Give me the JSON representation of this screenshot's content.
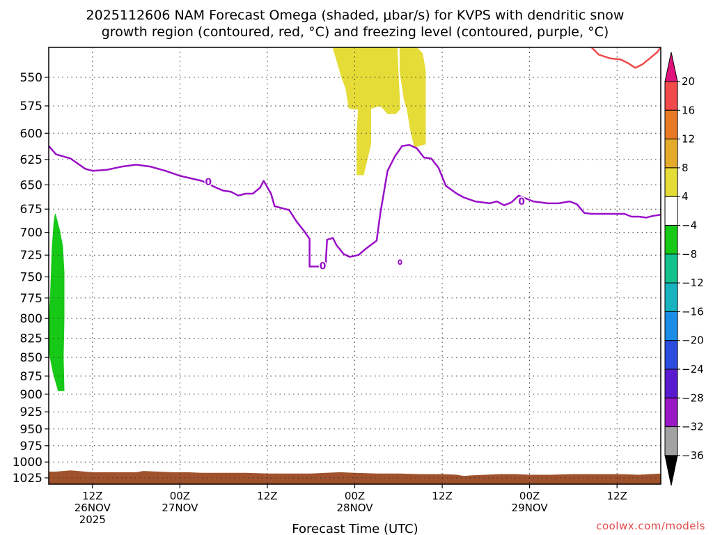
{
  "title_line1": "2025112606 NAM Forecast Omega (shaded, μbar/s) for KVPS with dendritic snow",
  "title_line2": "growth region (contoured, red, °C) and freezing level (contoured, purple, °C)",
  "credit": "coolwx.com/models",
  "chart_data": {
    "type": "time-height cross section",
    "title": "2025112606 NAM Forecast Omega (shaded, μbar/s) for KVPS with dendritic snow growth region (contoured, red, °C) and freezing level (contoured, purple, °C)",
    "xlabel": "Forecast Time (UTC)",
    "ylabel": "",
    "x_range_hours": [
      0,
      84
    ],
    "y_range_hpa": [
      525,
      1035
    ],
    "y_scale": "log-pressure (inverted)",
    "grid": true,
    "y_ticks": [
      550,
      575,
      600,
      625,
      650,
      675,
      700,
      725,
      750,
      775,
      800,
      825,
      850,
      875,
      900,
      925,
      950,
      975,
      1000,
      1025
    ],
    "x_ticks": [
      {
        "hour": 6,
        "line1": "12Z",
        "line2": "26NOV",
        "line3": "2025"
      },
      {
        "hour": 18,
        "line1": "00Z",
        "line2": "27NOV",
        "line3": ""
      },
      {
        "hour": 30,
        "line1": "12Z",
        "line2": "",
        "line3": ""
      },
      {
        "hour": 42,
        "line1": "00Z",
        "line2": "28NOV",
        "line3": ""
      },
      {
        "hour": 54,
        "line1": "12Z",
        "line2": "",
        "line3": ""
      },
      {
        "hour": 66,
        "line1": "00Z",
        "line2": "29NOV",
        "line3": ""
      },
      {
        "hour": 78,
        "line1": "12Z",
        "line2": "",
        "line3": ""
      }
    ],
    "colorbar": {
      "top_color": "#e0137a",
      "bottom_color": "#000000",
      "bins": [
        {
          "color": "#f04a4a"
        },
        {
          "color": "#e97a25"
        },
        {
          "color": "#e4ab2a"
        },
        {
          "color": "#e5dc38"
        },
        {
          "color": "#ffffff"
        },
        {
          "color": "#16c916"
        },
        {
          "color": "#13c18c"
        },
        {
          "color": "#17b4c0"
        },
        {
          "color": "#1c8de6"
        },
        {
          "color": "#2b4de0"
        },
        {
          "color": "#5a1bd0"
        },
        {
          "color": "#9a17c6"
        },
        {
          "color": "#a2a2a2"
        }
      ],
      "labels": [
        "20",
        "16",
        "12",
        "8",
        "4",
        "−4",
        "−8",
        "−12",
        "−16",
        "−20",
        "−24",
        "−28",
        "−32",
        "−36"
      ]
    },
    "freezing_level": {
      "color": "#9a10c8",
      "label": "0",
      "points": [
        [
          0,
          612
        ],
        [
          1,
          620
        ],
        [
          3,
          624
        ],
        [
          5,
          634
        ],
        [
          6,
          636
        ],
        [
          8,
          635
        ],
        [
          10,
          632
        ],
        [
          12,
          630
        ],
        [
          14,
          632
        ],
        [
          16,
          636
        ],
        [
          18,
          641
        ],
        [
          21,
          646
        ],
        [
          23,
          653
        ],
        [
          24,
          656
        ],
        [
          25,
          657
        ],
        [
          26,
          661
        ],
        [
          27,
          659
        ],
        [
          28,
          659
        ],
        [
          29,
          653
        ],
        [
          29.5,
          646
        ],
        [
          30.5,
          659
        ],
        [
          31,
          672
        ],
        [
          32,
          674
        ],
        [
          33,
          676
        ],
        [
          34,
          688
        ],
        [
          35,
          698
        ],
        [
          35.8,
          707
        ],
        [
          35.8,
          738
        ],
        [
          37.5,
          738
        ],
        [
          38,
          738
        ],
        [
          38.2,
          708
        ],
        [
          39,
          706
        ],
        [
          39.5,
          714
        ],
        [
          40.5,
          724
        ],
        [
          41.3,
          727
        ],
        [
          42.5,
          725
        ],
        [
          43.5,
          718
        ],
        [
          44.5,
          712
        ],
        [
          45,
          709
        ],
        [
          45.5,
          680
        ],
        [
          46.5,
          636
        ],
        [
          47.5,
          622
        ],
        [
          48.5,
          612
        ],
        [
          49.5,
          611
        ],
        [
          50.5,
          614
        ],
        [
          51.5,
          623
        ],
        [
          52.5,
          624
        ],
        [
          53.5,
          633
        ],
        [
          54.5,
          651
        ],
        [
          56,
          659
        ],
        [
          57,
          663
        ],
        [
          58.5,
          667
        ],
        [
          60.5,
          669
        ],
        [
          61.5,
          667
        ],
        [
          62.5,
          671
        ],
        [
          63.5,
          668
        ],
        [
          64.5,
          661
        ],
        [
          66.5,
          667
        ],
        [
          68.5,
          669
        ],
        [
          70,
          669
        ],
        [
          71.5,
          667
        ],
        [
          72.5,
          670
        ],
        [
          73.5,
          679
        ],
        [
          74.5,
          680
        ],
        [
          76,
          680
        ],
        [
          78,
          680
        ],
        [
          79,
          680
        ],
        [
          80,
          683
        ],
        [
          81,
          683
        ],
        [
          82,
          684
        ],
        [
          83,
          682
        ],
        [
          84,
          681
        ]
      ],
      "extra_small_contours": [
        {
          "hour": 48.2,
          "hpa": 733
        }
      ]
    },
    "dgz_contour": {
      "color": "#f04a4a",
      "points": [
        [
          74.5,
          525
        ],
        [
          75.5,
          531
        ],
        [
          77,
          534
        ],
        [
          78.5,
          535
        ],
        [
          79.5,
          538
        ],
        [
          80.5,
          542
        ],
        [
          81.5,
          539
        ],
        [
          82.5,
          534
        ],
        [
          83.5,
          529
        ],
        [
          84,
          525
        ]
      ]
    },
    "shaded_regions": [
      {
        "name": "green -4 to -8",
        "value_range": [
          -8,
          -4
        ],
        "color": "#16c916",
        "points": [
          [
            0.9,
            680
          ],
          [
            1.5,
            698
          ],
          [
            1.9,
            715
          ],
          [
            2.1,
            745
          ],
          [
            2.1,
            800
          ],
          [
            2.0,
            850
          ],
          [
            2.1,
            895
          ],
          [
            1.3,
            895
          ],
          [
            0.6,
            870
          ],
          [
            0.1,
            845
          ],
          [
            0,
            810
          ],
          [
            0.25,
            770
          ],
          [
            0.45,
            720
          ],
          [
            0.7,
            690
          ]
        ]
      },
      {
        "name": "yellow 4 to 8 (a)",
        "value_range": [
          4,
          8
        ],
        "color": "#e5dc38",
        "points": [
          [
            39,
            525
          ],
          [
            43,
            525
          ],
          [
            43.8,
            525
          ],
          [
            43.9,
            574
          ],
          [
            43.5,
            578
          ],
          [
            41.9,
            578
          ],
          [
            41.2,
            577
          ],
          [
            40.8,
            560
          ],
          [
            40.2,
            550
          ],
          [
            39.5,
            535
          ]
        ]
      },
      {
        "name": "yellow 4 to 8 (b)",
        "value_range": [
          4,
          8
        ],
        "color": "#e5dc38",
        "points": [
          [
            43,
            525
          ],
          [
            46,
            525
          ],
          [
            47.8,
            525
          ],
          [
            48.2,
            578
          ],
          [
            47.6,
            582
          ],
          [
            46.5,
            582
          ],
          [
            46,
            578
          ],
          [
            45.5,
            575
          ],
          [
            44.8,
            576
          ],
          [
            44,
            578
          ],
          [
            43,
            578
          ]
        ]
      },
      {
        "name": "yellow 4 to 8 (c)",
        "value_range": [
          4,
          8
        ],
        "color": "#e5dc38",
        "points": [
          [
            48.2,
            525
          ],
          [
            48.6,
            525
          ],
          [
            50.5,
            525
          ],
          [
            51.3,
            530
          ],
          [
            51.7,
            545
          ],
          [
            51.7,
            610
          ],
          [
            50.2,
            613
          ],
          [
            49.6,
            595
          ],
          [
            49.2,
            578
          ],
          [
            48.8,
            570
          ],
          [
            48.2,
            545
          ]
        ]
      },
      {
        "name": "yellow 4 to 8 (d)",
        "value_range": [
          4,
          8
        ],
        "color": "#e5dc38",
        "points": [
          [
            42.8,
            578
          ],
          [
            44.2,
            578
          ],
          [
            44.2,
            610
          ],
          [
            43.2,
            640
          ],
          [
            42.3,
            640
          ],
          [
            42.3,
            600
          ],
          [
            42.5,
            578
          ]
        ]
      }
    ],
    "terrain": {
      "color": "#a0522d",
      "top_hpa": [
        [
          0,
          1015
        ],
        [
          1,
          1015
        ],
        [
          2,
          1014
        ],
        [
          3,
          1013
        ],
        [
          4,
          1014
        ],
        [
          6,
          1016
        ],
        [
          8,
          1016
        ],
        [
          10,
          1016
        ],
        [
          12,
          1016
        ],
        [
          13,
          1014
        ],
        [
          15,
          1015
        ],
        [
          17,
          1016
        ],
        [
          19,
          1016
        ],
        [
          21,
          1017
        ],
        [
          24,
          1017
        ],
        [
          27,
          1017
        ],
        [
          30,
          1018
        ],
        [
          33,
          1018
        ],
        [
          36,
          1018
        ],
        [
          38,
          1017
        ],
        [
          40,
          1016
        ],
        [
          42,
          1017
        ],
        [
          45,
          1018
        ],
        [
          48,
          1018
        ],
        [
          51,
          1019
        ],
        [
          54,
          1019
        ],
        [
          56,
          1020
        ],
        [
          57,
          1022
        ],
        [
          58,
          1021
        ],
        [
          60,
          1020
        ],
        [
          62,
          1019
        ],
        [
          64,
          1019
        ],
        [
          66,
          1020
        ],
        [
          69,
          1020
        ],
        [
          72,
          1019
        ],
        [
          75,
          1019
        ],
        [
          78,
          1019
        ],
        [
          81,
          1020
        ],
        [
          84,
          1018
        ]
      ]
    }
  }
}
